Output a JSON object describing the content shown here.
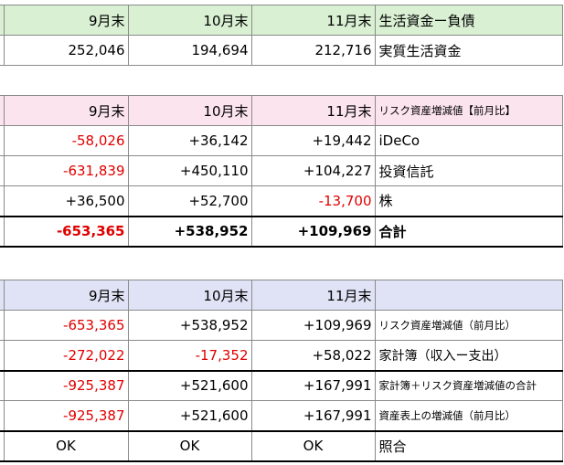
{
  "table1": {
    "header": [
      "9月末",
      "10月末",
      "11月末",
      "生活資金ー負債"
    ],
    "row": [
      "252,046",
      "194,694",
      "212,716",
      "実質生活資金"
    ]
  },
  "table2": {
    "header": [
      "9月末",
      "10月末",
      "11月末",
      "リスク資産増減値【前月比】"
    ],
    "rows": [
      [
        "-58,026",
        "+36,142",
        "+19,442",
        "iDeCo"
      ],
      [
        "-631,839",
        "+450,110",
        "+104,227",
        "投資信託"
      ],
      [
        "+36,500",
        "+52,700",
        "-13,700",
        "株"
      ]
    ],
    "total": [
      "-653,365",
      "+538,952",
      "+109,969",
      "合計"
    ]
  },
  "table3": {
    "header": [
      "9月末",
      "10月末",
      "11月末",
      ""
    ],
    "rows": [
      [
        "-653,365",
        "+538,952",
        "+109,969",
        "リスク資産増減値（前月比）"
      ],
      [
        "-272,022",
        "-17,352",
        "+58,022",
        "家計簿（収入ー支出）"
      ],
      [
        "-925,387",
        "+521,600",
        "+167,991",
        "家計簿＋リスク資産増減値の合計"
      ],
      [
        "-925,387",
        "+521,600",
        "+167,991",
        "資産表上の増減値（前月比）"
      ],
      [
        "OK",
        "OK",
        "OK",
        "照合"
      ]
    ]
  },
  "colors": {
    "negative": "#e00000",
    "header_green": "#d9f0d3",
    "header_pink": "#fce4ef",
    "header_blue": "#e0e3f5"
  }
}
